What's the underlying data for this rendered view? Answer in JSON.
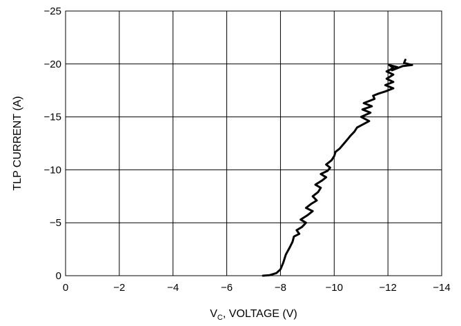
{
  "chart_data": {
    "type": "line",
    "title": "",
    "xlabel": {
      "main": "V",
      "subscript": "C",
      "rest": ", VOLTAGE (V)"
    },
    "ylabel": "TLP CURRENT (A)",
    "xlim": [
      0,
      -14
    ],
    "ylim": [
      0,
      -25
    ],
    "x_ticks": [
      0,
      -2,
      -4,
      -6,
      -8,
      -10,
      -12,
      -14
    ],
    "y_ticks": [
      0,
      -5,
      -10,
      -15,
      -20,
      -25
    ],
    "x_tick_labels": [
      "0",
      "−2",
      "−4",
      "−6",
      "−8",
      "−10",
      "−12",
      "−14"
    ],
    "y_tick_labels": [
      "0",
      "−5",
      "−10",
      "−15",
      "−20",
      "−25"
    ],
    "grid": true,
    "series": [
      {
        "x": [
          7.35,
          7.6,
          7.85,
          8.0,
          8.1,
          8.2,
          8.35,
          8.45,
          8.5,
          8.7,
          8.6,
          8.8,
          8.95,
          8.75,
          9.0,
          9.2,
          8.95,
          9.15,
          9.35,
          9.2,
          9.4,
          9.5,
          9.3,
          9.55,
          9.7,
          9.5,
          9.75,
          9.85,
          9.7,
          9.9,
          10.0,
          10.05,
          10.2,
          10.3,
          10.4,
          10.5,
          10.6,
          10.75,
          10.85,
          11.0,
          11.3,
          11.0,
          11.35,
          11.05,
          11.4,
          11.1,
          11.5,
          11.45,
          11.65,
          11.9,
          12.2,
          11.9,
          12.2,
          11.95,
          12.2,
          11.95,
          12.2,
          12.05,
          12.35,
          12.15,
          12.55,
          12.9,
          12.6,
          12.65
        ],
        "y": [
          0,
          0.05,
          0.25,
          0.6,
          1.2,
          2.0,
          2.7,
          3.2,
          3.7,
          3.95,
          4.3,
          4.6,
          5.0,
          5.3,
          5.7,
          6.1,
          6.4,
          6.8,
          7.1,
          7.5,
          7.9,
          8.3,
          8.6,
          9.0,
          9.3,
          9.6,
          9.9,
          10.2,
          10.5,
          10.9,
          11.3,
          11.7,
          12.0,
          12.3,
          12.6,
          12.9,
          13.2,
          13.6,
          14.0,
          14.2,
          14.6,
          15.0,
          15.4,
          15.7,
          16.0,
          16.3,
          16.7,
          17.0,
          17.2,
          17.4,
          17.7,
          18.0,
          18.3,
          18.6,
          19.0,
          19.3,
          19.6,
          19.9,
          19.7,
          19.4,
          19.8,
          19.9,
          20.1,
          20.4
        ]
      }
    ]
  }
}
